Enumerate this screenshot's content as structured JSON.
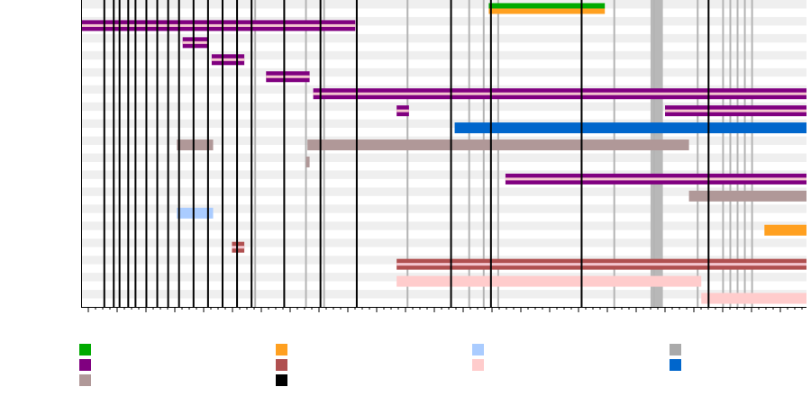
{
  "chart_data": {
    "type": "timeline",
    "grid": "alternating-row-bands",
    "x_axis": {
      "range": [
        0,
        100
      ],
      "labels_visible": false
    },
    "vertical_lines": {
      "black": [
        3.2,
        4.5,
        5.3,
        6.5,
        7.5,
        9.0,
        10.5,
        12.0,
        13.5,
        15.5,
        17.5,
        19.5,
        21.5,
        23.5,
        28.0,
        33.0,
        38.0,
        51.0,
        56.5,
        69.0,
        86.5
      ],
      "gray": [
        24.0,
        31.0,
        33.5,
        45.0,
        53.5,
        55.5,
        57.5,
        73.5,
        79.0,
        85.0,
        88.5,
        89.5,
        90.5,
        91.5,
        92.5
      ],
      "gray_wide": [
        {
          "from": 78.5,
          "to": 80.2
        }
      ]
    },
    "rows": [
      {
        "bars": [
          {
            "from": 56.2,
            "to": 72.2,
            "color": "#00aa00"
          },
          {
            "from": 56.2,
            "to": 72.2,
            "color": "#ffa020"
          }
        ]
      },
      {
        "bars": [
          {
            "from": 0,
            "to": 37.8,
            "color": "#800080"
          }
        ]
      },
      {
        "bars": [
          {
            "from": 14.0,
            "to": 17.5,
            "color": "#800080"
          }
        ]
      },
      {
        "bars": [
          {
            "from": 18.0,
            "to": 22.5,
            "color": "#800080"
          }
        ]
      },
      {
        "bars": [
          {
            "from": 25.5,
            "to": 31.5,
            "color": "#800080"
          }
        ]
      },
      {
        "bars": [
          {
            "from": 32.0,
            "to": 100,
            "color": "#800080"
          }
        ]
      },
      {
        "bars": [
          {
            "from": 43.5,
            "to": 45.2,
            "color": "#800080"
          },
          {
            "from": 80.5,
            "to": 100,
            "color": "#800080"
          }
        ]
      },
      {
        "bars": [
          {
            "from": 51.5,
            "to": 100,
            "color": "#0066cc"
          }
        ]
      },
      {
        "bars": [
          {
            "from": 13.2,
            "to": 18.2,
            "color": "#b09898"
          },
          {
            "from": 31.2,
            "to": 83.8,
            "color": "#b09898"
          }
        ]
      },
      {
        "bars": [
          {
            "from": 31.0,
            "to": 31.5,
            "color": "#b09898"
          }
        ]
      },
      {
        "bars": [
          {
            "from": 58.5,
            "to": 100,
            "color": "#800080"
          }
        ]
      },
      {
        "bars": [
          {
            "from": 83.8,
            "to": 100,
            "color": "#b09898"
          }
        ]
      },
      {
        "bars": [
          {
            "from": 13.2,
            "to": 18.2,
            "color": "#aaccff"
          }
        ]
      },
      {
        "bars": [
          {
            "from": 94.2,
            "to": 100,
            "color": "#ffa020"
          }
        ]
      },
      {
        "bars": [
          {
            "from": 20.8,
            "to": 22.5,
            "color": "#b05050"
          }
        ]
      },
      {
        "bars": [
          {
            "from": 43.5,
            "to": 100,
            "color": "#b05050"
          }
        ]
      },
      {
        "bars": [
          {
            "from": 43.5,
            "to": 85.5,
            "color": "#ffcccc"
          }
        ]
      },
      {
        "bars": [
          {
            "from": 85.5,
            "to": 100,
            "color": "#ffcccc"
          }
        ]
      }
    ],
    "legend": {
      "placement": "bottom",
      "entries": [
        {
          "color": "#00aa00"
        },
        {
          "color": "#ffa020"
        },
        {
          "color": "#aaccff"
        },
        {
          "color": "#aaaaaa"
        },
        {
          "color": "#800080"
        },
        {
          "color": "#b05050"
        },
        {
          "color": "#ffcccc"
        },
        {
          "color": "#0066cc"
        },
        {
          "color": "#b09898"
        },
        {
          "color": "#000000"
        }
      ]
    }
  }
}
